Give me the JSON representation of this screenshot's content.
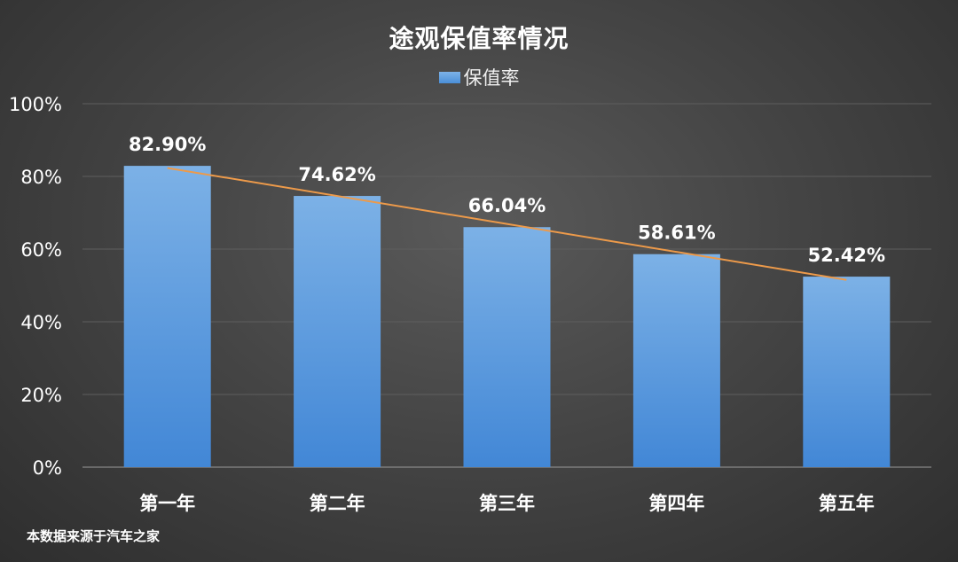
{
  "chart_data": {
    "type": "bar",
    "title": "途观保值率情况",
    "categories": [
      "第一年",
      "第二年",
      "第三年",
      "第四年",
      "第五年"
    ],
    "series": [
      {
        "name": "保值率",
        "values": [
          82.9,
          74.62,
          66.04,
          58.61,
          52.42
        ],
        "data_labels": [
          "82.90%",
          "74.62%",
          "66.04%",
          "58.61%",
          "52.42%"
        ],
        "color": "#5b9bd5"
      }
    ],
    "trendline": {
      "type": "linear",
      "color": "#ed9a4a"
    },
    "ylim": [
      0,
      100
    ],
    "yticks": [
      0,
      20,
      40,
      60,
      80,
      100
    ],
    "ytick_labels": [
      "0%",
      "20%",
      "40%",
      "60%",
      "80%",
      "100%"
    ],
    "grid": true,
    "legend_position": "top-center",
    "xlabel": "",
    "ylabel": ""
  },
  "source_note": "本数据来源于汽车之家"
}
